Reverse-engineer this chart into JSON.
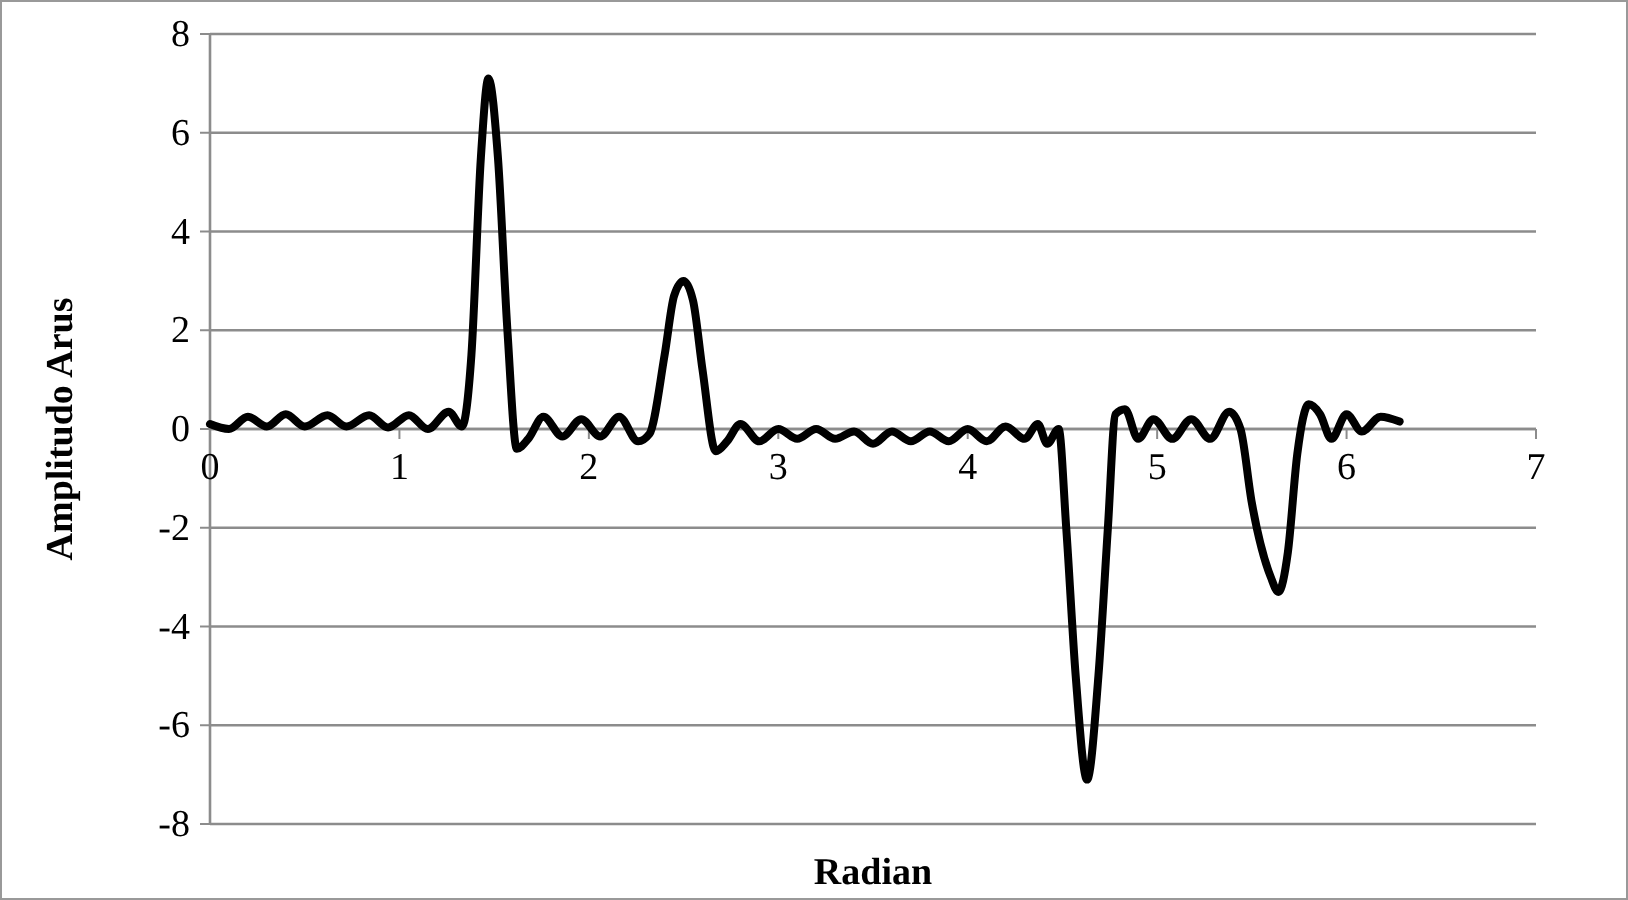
{
  "chart_data": {
    "type": "line",
    "xlabel": "Radian",
    "ylabel": "Amplitudo Arus",
    "xlim": [
      0,
      7
    ],
    "xticks": [
      0,
      1,
      2,
      3,
      4,
      5,
      6,
      7
    ],
    "ylim": [
      -8,
      8
    ],
    "yticks": [
      -8,
      -6,
      -4,
      -2,
      0,
      2,
      4,
      6,
      8
    ],
    "grid": "y",
    "marker": "none",
    "line_style": "solid",
    "series": [
      {
        "color": "#000000",
        "x": [
          0,
          0.1,
          0.2,
          0.3,
          0.4,
          0.5,
          0.62,
          0.72,
          0.84,
          0.94,
          1.05,
          1.15,
          1.26,
          1.33,
          1.38,
          1.43,
          1.47,
          1.52,
          1.57,
          1.62,
          1.68,
          1.76,
          1.86,
          1.96,
          2.06,
          2.16,
          2.26,
          2.32,
          2.4,
          2.45,
          2.5,
          2.55,
          2.6,
          2.67,
          2.73,
          2.8,
          2.9,
          3.0,
          3.1,
          3.2,
          3.3,
          3.4,
          3.5,
          3.6,
          3.7,
          3.8,
          3.9,
          4.0,
          4.1,
          4.2,
          4.3,
          4.37,
          4.42,
          4.48,
          4.52,
          4.57,
          4.63,
          4.69,
          4.74,
          4.78,
          4.83,
          4.9,
          4.98,
          5.08,
          5.18,
          5.28,
          5.38,
          5.44,
          5.5,
          5.6,
          5.64,
          5.69,
          5.74,
          5.8,
          5.86,
          5.92,
          6.0,
          6.08,
          6.18,
          6.28
        ],
        "values": [
          0.1,
          0.0,
          0.25,
          0.05,
          0.3,
          0.05,
          0.28,
          0.05,
          0.28,
          0.03,
          0.28,
          0.0,
          0.35,
          0.05,
          1.5,
          5.5,
          7.1,
          5.5,
          2,
          -0.4,
          -0.2,
          0.25,
          -0.15,
          0.2,
          -0.15,
          0.25,
          -0.25,
          -0.1,
          1.5,
          2.7,
          3.0,
          2.6,
          1.2,
          -0.45,
          -0.25,
          0.1,
          -0.25,
          0.0,
          -0.2,
          0.0,
          -0.2,
          -0.05,
          -0.3,
          -0.05,
          -0.25,
          -0.05,
          -0.25,
          0.0,
          -0.25,
          0.05,
          -0.2,
          0.1,
          -0.3,
          0,
          -2,
          -5,
          -7.1,
          -5,
          -2,
          0.3,
          0.4,
          -0.2,
          0.2,
          -0.2,
          0.2,
          -0.2,
          0.35,
          0,
          -1.5,
          -3.0,
          -3.3,
          -2.5,
          -0.5,
          0.5,
          0.3,
          -0.2,
          0.3,
          -0.05,
          0.25,
          0.15
        ]
      }
    ]
  }
}
